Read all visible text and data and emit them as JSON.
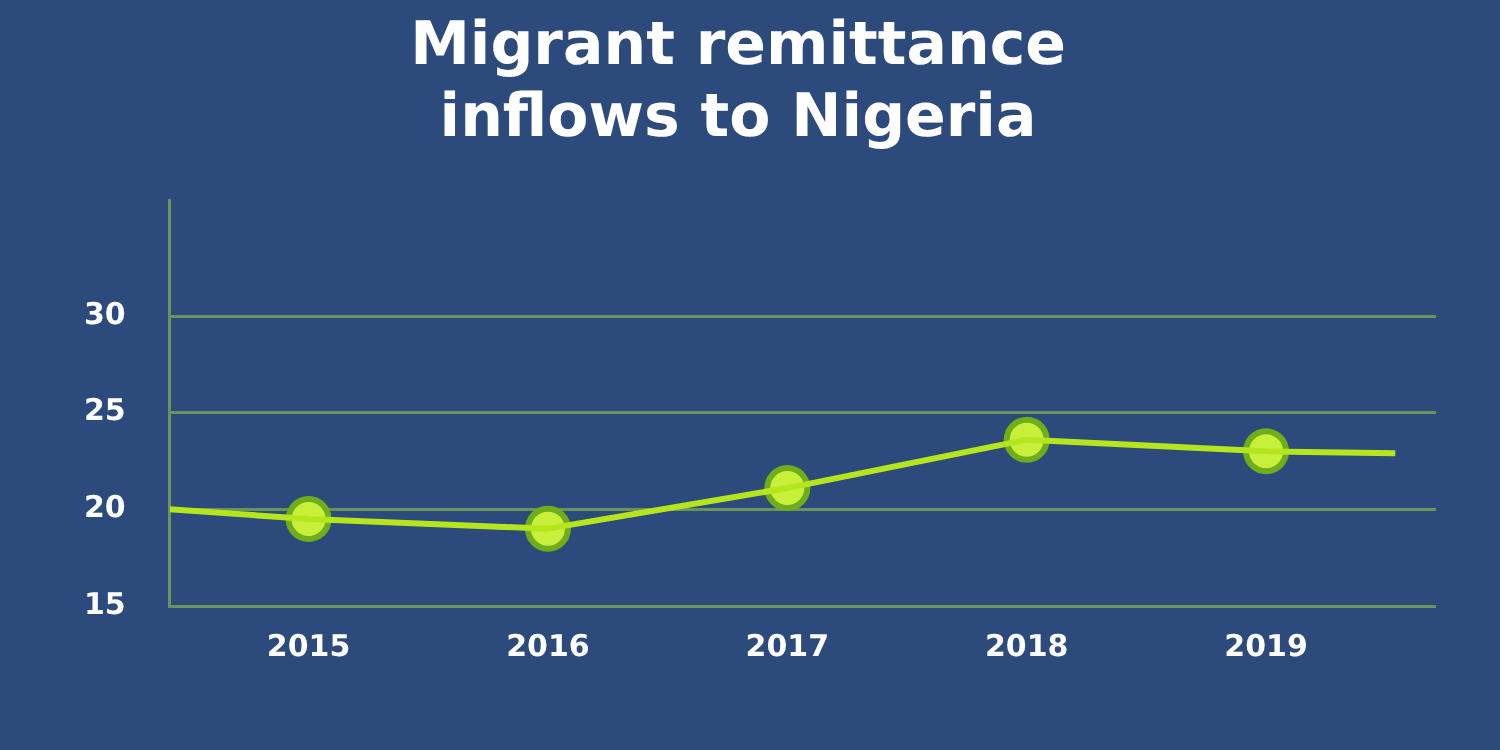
{
  "chart_data": {
    "type": "line",
    "title": "Migrant remittance inflows to Nigeria",
    "series": [
      {
        "color": "#b5e61d",
        "marker": "none",
        "x": [
          2014.42,
          2015,
          2016,
          2017,
          2018,
          2019,
          2019.54
        ],
        "values": [
          20.0,
          19.5,
          19.0,
          21.1,
          23.6,
          23.0,
          22.9
        ]
      },
      {
        "type": "scatter",
        "color": "#c8f03a",
        "marker": "circle",
        "x": [
          2015,
          2016,
          2017,
          2018,
          2019
        ],
        "values": [
          19.5,
          19.0,
          21.1,
          23.6,
          23.0
        ]
      }
    ],
    "xlim": [
      2014.42,
      2019.71
    ],
    "xticks": [
      2015,
      2016,
      2017,
      2018,
      2019
    ],
    "ylim": [
      15,
      36
    ],
    "yticks": [
      15,
      20,
      25,
      30
    ],
    "grid": "y",
    "legend": false
  }
}
